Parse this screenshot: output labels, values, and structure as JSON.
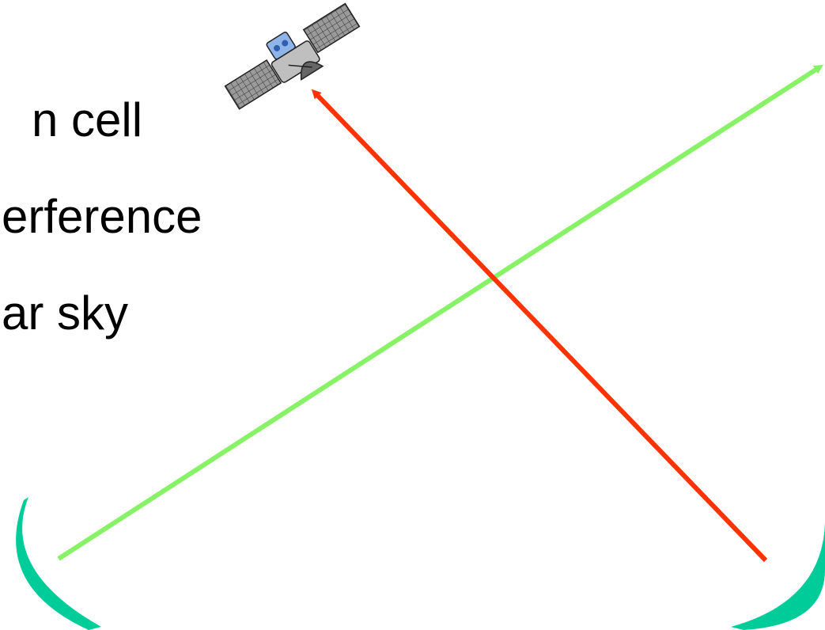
{
  "text_lines": [
    "n cell",
    "erference",
    "ar sky"
  ],
  "beams": {
    "red_color": "#ff3300",
    "green_color": "#88f266"
  },
  "dishes": {
    "color": "#00cc99"
  },
  "satellite": {
    "icon": "satellite-icon"
  }
}
